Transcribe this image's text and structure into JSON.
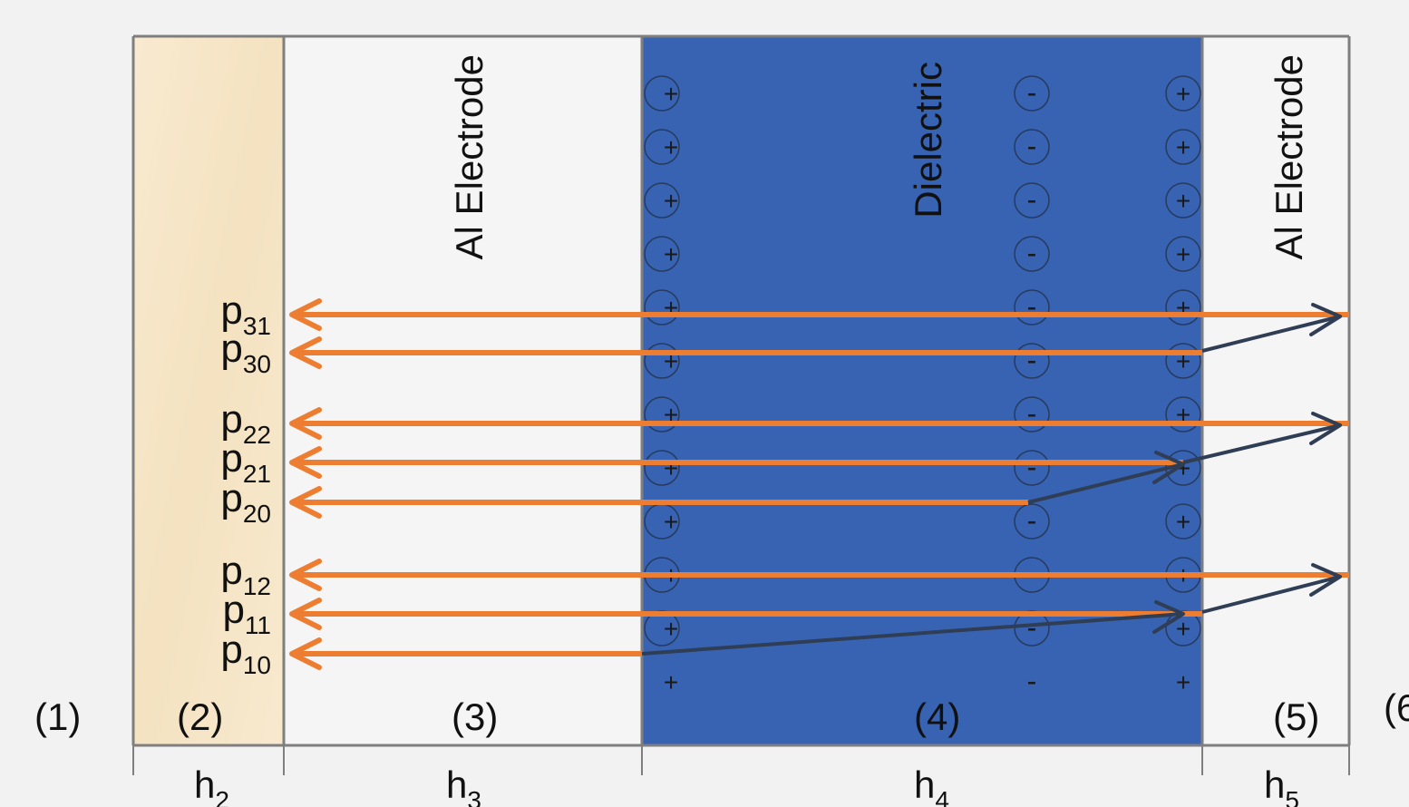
{
  "colors": {
    "background": "#f2f2f2",
    "substrate": "#f7e7c8",
    "electrode": "#f5f5f5",
    "dielectric": "#3763b2",
    "outline": "#7f7f7f",
    "path_orange": "#ed7d31",
    "path_dark": "#2f3e55",
    "charge": "#1a1a1a"
  },
  "layers": {
    "electrode_left": "Al Electrode",
    "dielectric": "Dielectric",
    "electrode_right": "Al Electrode"
  },
  "regions": [
    "(1)",
    "(2)",
    "(3)",
    "(4)",
    "(5)",
    "(6"
  ],
  "thickness_labels": [
    {
      "main": "h",
      "sub": "2"
    },
    {
      "main": "h",
      "sub": "3"
    },
    {
      "main": "h",
      "sub": "4"
    },
    {
      "main": "h",
      "sub": "5"
    }
  ],
  "paths": [
    {
      "main": "p",
      "sub": "31"
    },
    {
      "main": "p",
      "sub": "30"
    },
    {
      "main": "p",
      "sub": "22"
    },
    {
      "main": "p",
      "sub": "21"
    },
    {
      "main": "p",
      "sub": "20"
    },
    {
      "main": "p",
      "sub": "12"
    },
    {
      "main": "p",
      "sub": "11"
    },
    {
      "main": "p",
      "sub": "10"
    }
  ],
  "charge_columns": [
    {
      "sign": "+",
      "count": 12
    },
    {
      "sign": "-",
      "count": 12
    },
    {
      "sign": "+",
      "count": 12
    }
  ]
}
